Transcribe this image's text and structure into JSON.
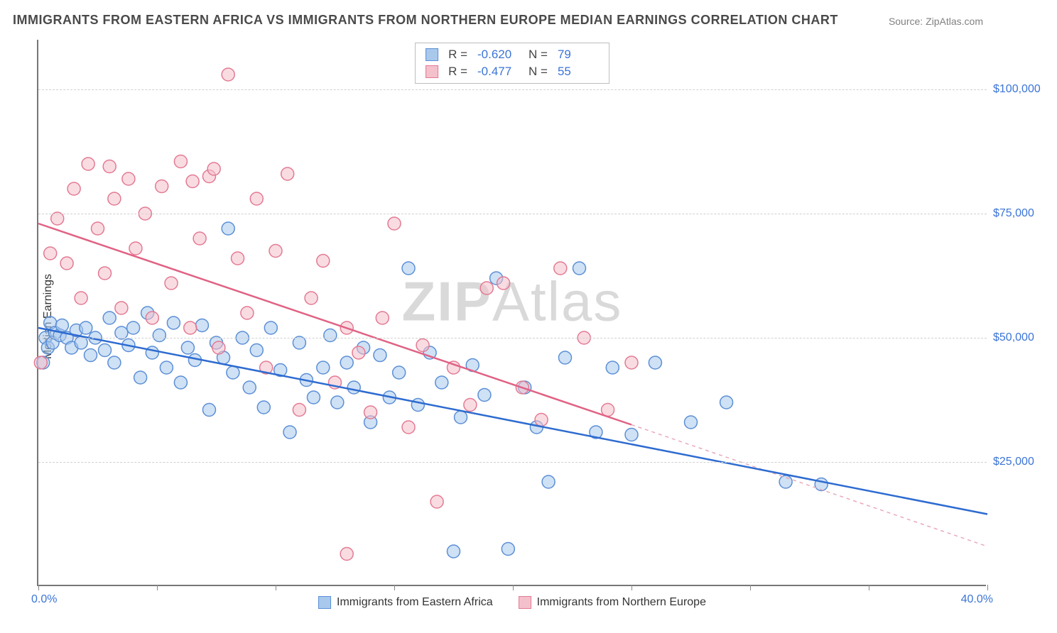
{
  "title": "IMMIGRANTS FROM EASTERN AFRICA VS IMMIGRANTS FROM NORTHERN EUROPE MEDIAN EARNINGS CORRELATION CHART",
  "source": "Source: ZipAtlas.com",
  "watermark_bold": "ZIP",
  "watermark_light": "Atlas",
  "chart": {
    "type": "scatter",
    "ylabel": "Median Earnings",
    "xlim": [
      0,
      40
    ],
    "ylim": [
      0,
      110000
    ],
    "x_min_label": "0.0%",
    "x_max_label": "40.0%",
    "y_ticks": [
      25000,
      50000,
      75000,
      100000
    ],
    "y_tick_labels": [
      "$25,000",
      "$50,000",
      "$75,000",
      "$100,000"
    ],
    "x_tick_positions": [
      0,
      5,
      10,
      15,
      20,
      25,
      30,
      35,
      40
    ],
    "grid_color": "#d0d0d0",
    "axis_color": "#777777",
    "background_color": "#ffffff",
    "label_fontsize": 16,
    "title_fontsize": 18,
    "series": [
      {
        "name": "Immigrants from Eastern Africa",
        "fill_color": "#a8c8ec",
        "stroke_color": "#5b8fd6",
        "fill_opacity": 0.55,
        "marker_radius": 9,
        "correlation_R": "-0.620",
        "correlation_N": "79",
        "trend": {
          "x1": 0,
          "y1": 52000,
          "x2": 40,
          "y2": 14500,
          "dash_after_x": 40,
          "line_width": 2.5
        },
        "points": [
          [
            0.3,
            50000
          ],
          [
            0.4,
            48000
          ],
          [
            0.5,
            53000
          ],
          [
            0.6,
            49000
          ],
          [
            0.7,
            51000
          ],
          [
            0.9,
            50500
          ],
          [
            1.0,
            52500
          ],
          [
            1.2,
            50000
          ],
          [
            1.4,
            48000
          ],
          [
            1.6,
            51500
          ],
          [
            1.8,
            49000
          ],
          [
            2.0,
            52000
          ],
          [
            2.2,
            46500
          ],
          [
            2.4,
            50000
          ],
          [
            2.8,
            47500
          ],
          [
            3.0,
            54000
          ],
          [
            3.2,
            45000
          ],
          [
            3.5,
            51000
          ],
          [
            3.8,
            48500
          ],
          [
            4.0,
            52000
          ],
          [
            4.3,
            42000
          ],
          [
            4.6,
            55000
          ],
          [
            4.8,
            47000
          ],
          [
            5.1,
            50500
          ],
          [
            5.4,
            44000
          ],
          [
            5.7,
            53000
          ],
          [
            6.0,
            41000
          ],
          [
            6.3,
            48000
          ],
          [
            6.6,
            45500
          ],
          [
            6.9,
            52500
          ],
          [
            7.2,
            35500
          ],
          [
            7.5,
            49000
          ],
          [
            7.8,
            46000
          ],
          [
            8.0,
            72000
          ],
          [
            8.2,
            43000
          ],
          [
            8.6,
            50000
          ],
          [
            8.9,
            40000
          ],
          [
            9.2,
            47500
          ],
          [
            9.5,
            36000
          ],
          [
            9.8,
            52000
          ],
          [
            10.2,
            43500
          ],
          [
            10.6,
            31000
          ],
          [
            11.0,
            49000
          ],
          [
            11.3,
            41500
          ],
          [
            11.6,
            38000
          ],
          [
            12.0,
            44000
          ],
          [
            12.3,
            50500
          ],
          [
            12.6,
            37000
          ],
          [
            13.0,
            45000
          ],
          [
            13.3,
            40000
          ],
          [
            13.7,
            48000
          ],
          [
            14.0,
            33000
          ],
          [
            14.4,
            46500
          ],
          [
            14.8,
            38000
          ],
          [
            15.2,
            43000
          ],
          [
            15.6,
            64000
          ],
          [
            16.0,
            36500
          ],
          [
            16.5,
            47000
          ],
          [
            17.0,
            41000
          ],
          [
            17.5,
            7000
          ],
          [
            17.8,
            34000
          ],
          [
            18.3,
            44500
          ],
          [
            18.8,
            38500
          ],
          [
            19.3,
            62000
          ],
          [
            19.8,
            7500
          ],
          [
            20.5,
            40000
          ],
          [
            21.0,
            32000
          ],
          [
            21.5,
            21000
          ],
          [
            22.2,
            46000
          ],
          [
            22.8,
            64000
          ],
          [
            23.5,
            31000
          ],
          [
            24.2,
            44000
          ],
          [
            25.0,
            30500
          ],
          [
            26.0,
            45000
          ],
          [
            27.5,
            33000
          ],
          [
            29.0,
            37000
          ],
          [
            31.5,
            21000
          ],
          [
            33.0,
            20500
          ],
          [
            0.2,
            45000
          ]
        ]
      },
      {
        "name": "Immigrants from Northern Europe",
        "fill_color": "#f4c0cb",
        "stroke_color": "#e37a93",
        "fill_opacity": 0.55,
        "marker_radius": 9,
        "correlation_R": "-0.477",
        "correlation_N": "55",
        "trend": {
          "x1": 0,
          "y1": 73000,
          "x2": 25,
          "y2": 32500,
          "dash_after_x": 25,
          "extrapolate_to_x": 40,
          "extrapolate_to_y": 8000,
          "line_width": 2.5
        },
        "points": [
          [
            0.1,
            45000
          ],
          [
            0.5,
            67000
          ],
          [
            0.8,
            74000
          ],
          [
            1.2,
            65000
          ],
          [
            1.5,
            80000
          ],
          [
            1.8,
            58000
          ],
          [
            2.1,
            85000
          ],
          [
            2.5,
            72000
          ],
          [
            2.8,
            63000
          ],
          [
            3.2,
            78000
          ],
          [
            3.5,
            56000
          ],
          [
            3.8,
            82000
          ],
          [
            4.1,
            68000
          ],
          [
            4.5,
            75000
          ],
          [
            4.8,
            54000
          ],
          [
            5.2,
            80500
          ],
          [
            5.6,
            61000
          ],
          [
            6.0,
            85500
          ],
          [
            6.4,
            52000
          ],
          [
            6.8,
            70000
          ],
          [
            7.2,
            82500
          ],
          [
            7.6,
            48000
          ],
          [
            8.0,
            103000
          ],
          [
            8.4,
            66000
          ],
          [
            8.8,
            55000
          ],
          [
            9.2,
            78000
          ],
          [
            9.6,
            44000
          ],
          [
            10.0,
            67500
          ],
          [
            10.5,
            83000
          ],
          [
            11.0,
            35500
          ],
          [
            11.5,
            58000
          ],
          [
            12.0,
            65500
          ],
          [
            12.5,
            41000
          ],
          [
            13.0,
            52000
          ],
          [
            13.5,
            47000
          ],
          [
            14.0,
            35000
          ],
          [
            14.5,
            54000
          ],
          [
            15.0,
            73000
          ],
          [
            15.6,
            32000
          ],
          [
            16.2,
            48500
          ],
          [
            16.8,
            17000
          ],
          [
            17.5,
            44000
          ],
          [
            18.2,
            36500
          ],
          [
            18.9,
            60000
          ],
          [
            19.6,
            61000
          ],
          [
            20.4,
            40000
          ],
          [
            21.2,
            33500
          ],
          [
            22.0,
            64000
          ],
          [
            23.0,
            50000
          ],
          [
            24.0,
            35500
          ],
          [
            25.0,
            45000
          ],
          [
            13.0,
            6500
          ],
          [
            3.0,
            84500
          ],
          [
            6.5,
            81500
          ],
          [
            7.4,
            84000
          ]
        ]
      }
    ],
    "bottom_legend": [
      {
        "label": "Immigrants from Eastern Africa",
        "fill": "#a8c8ec",
        "stroke": "#5b8fd6"
      },
      {
        "label": "Immigrants from Northern Europe",
        "fill": "#f4c0cb",
        "stroke": "#e37a93"
      }
    ]
  }
}
